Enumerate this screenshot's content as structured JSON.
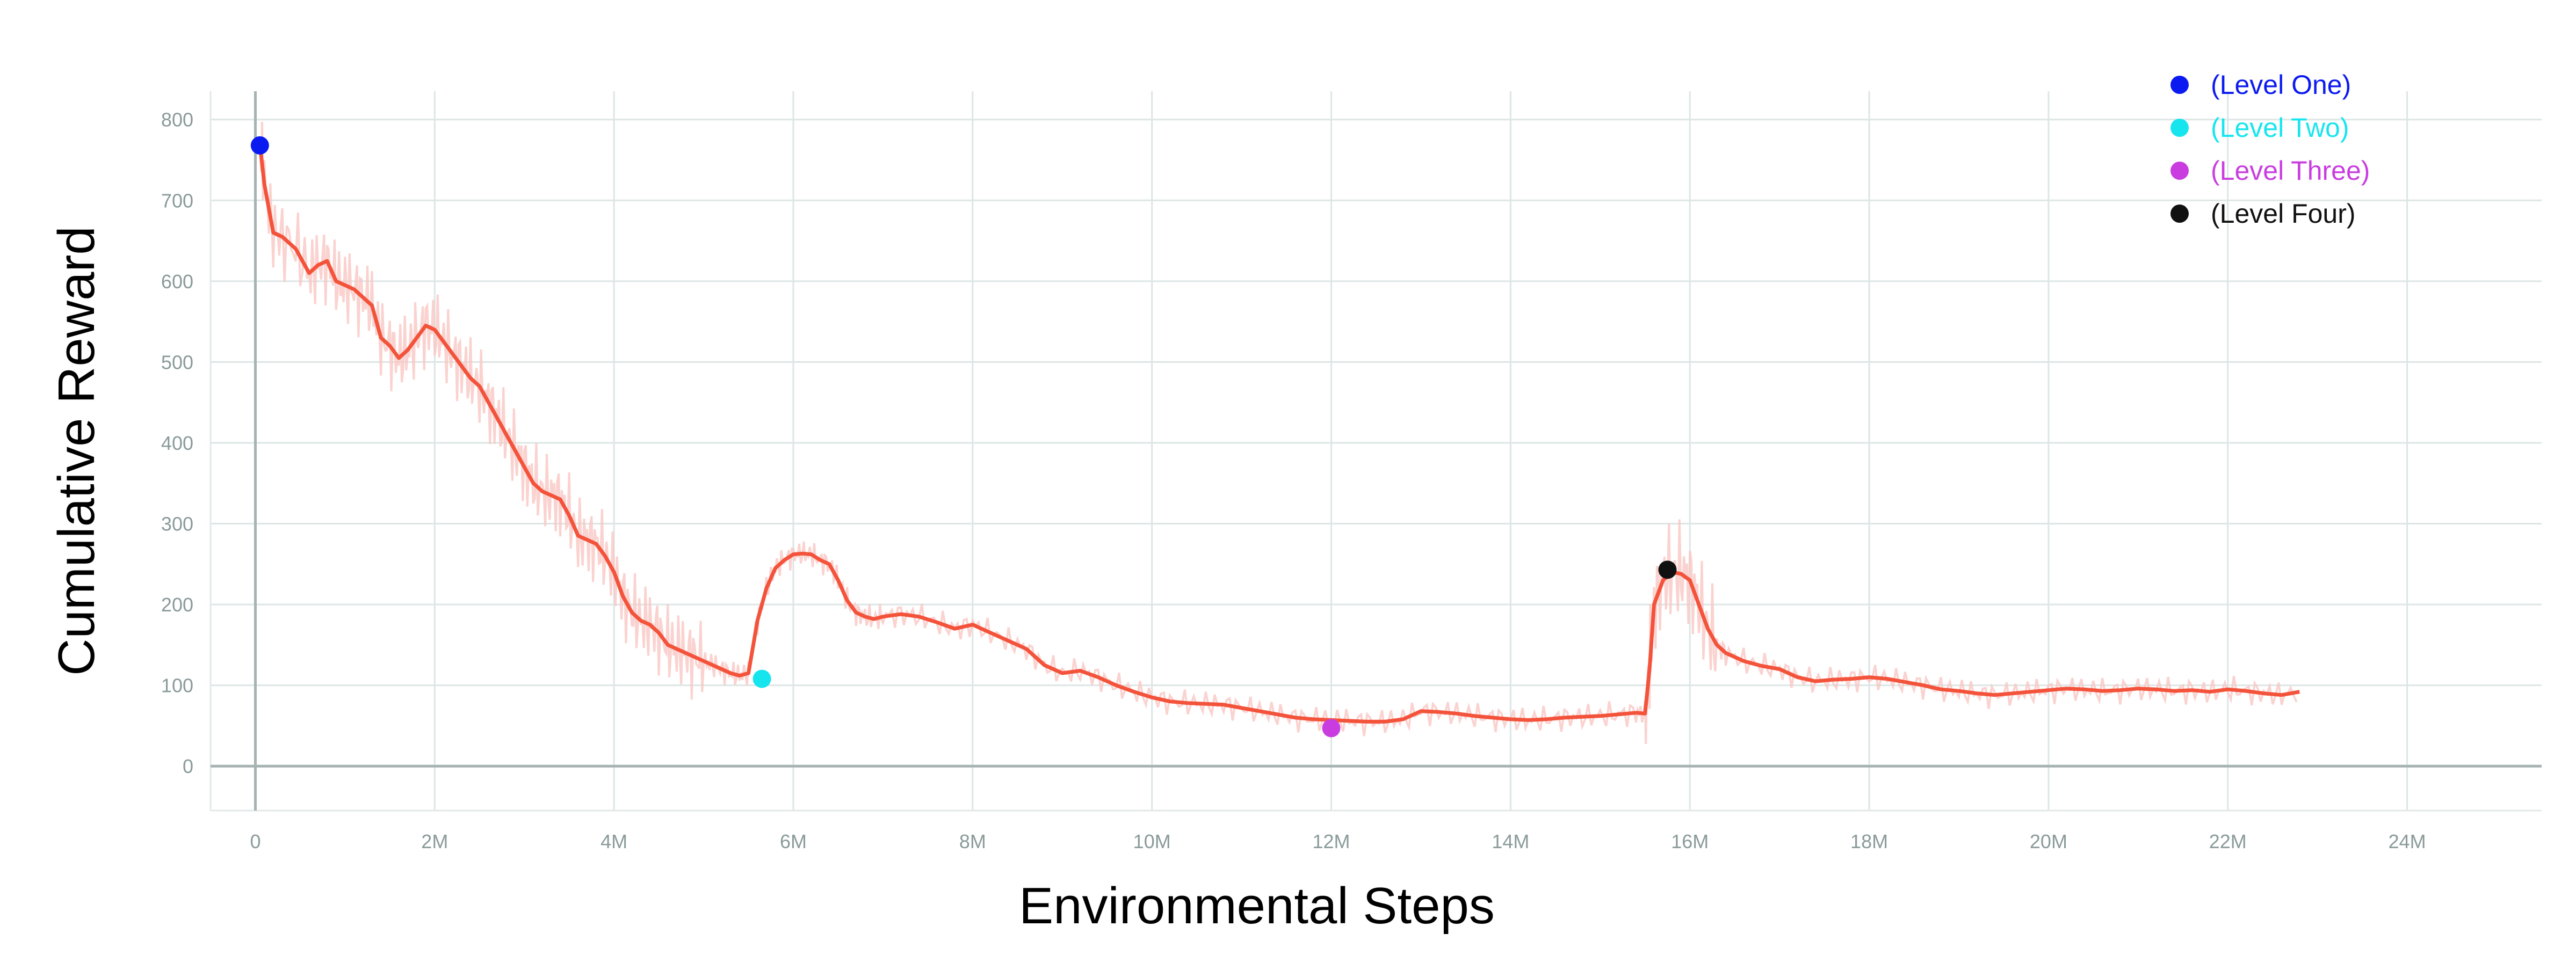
{
  "chart_data": {
    "type": "line",
    "title": "",
    "xlabel": "Environmental Steps",
    "ylabel": "Cumulative Reward",
    "xlim": [
      -0.5,
      25.5
    ],
    "ylim": [
      -55,
      835
    ],
    "grid": true,
    "legend_position": "top-right",
    "x_ticks": [
      0,
      2,
      4,
      6,
      8,
      10,
      12,
      14,
      16,
      18,
      20,
      22,
      24
    ],
    "x_tick_labels": [
      "0",
      "2M",
      "4M",
      "6M",
      "8M",
      "10M",
      "12M",
      "14M",
      "16M",
      "18M",
      "20M",
      "22M",
      "24M"
    ],
    "y_ticks": [
      0,
      100,
      200,
      300,
      400,
      500,
      600,
      700,
      800
    ],
    "y_tick_labels": [
      "0",
      "100",
      "200",
      "300",
      "400",
      "500",
      "600",
      "700",
      "800"
    ],
    "x_unit": "M",
    "series": [
      {
        "color": "#f4533b",
        "raw_color": "#f9c7c3",
        "x": [
          0.05,
          0.1,
          0.2,
          0.3,
          0.45,
          0.6,
          0.7,
          0.8,
          0.9,
          1.0,
          1.1,
          1.2,
          1.3,
          1.4,
          1.5,
          1.6,
          1.7,
          1.8,
          1.9,
          2.0,
          2.1,
          2.2,
          2.3,
          2.4,
          2.5,
          2.6,
          2.7,
          2.8,
          2.9,
          3.0,
          3.1,
          3.2,
          3.3,
          3.4,
          3.5,
          3.6,
          3.7,
          3.8,
          3.9,
          4.0,
          4.1,
          4.2,
          4.3,
          4.4,
          4.5,
          4.6,
          4.7,
          4.8,
          4.9,
          5.0,
          5.1,
          5.2,
          5.3,
          5.4,
          5.5,
          5.6,
          5.7,
          5.8,
          5.9,
          6.0,
          6.1,
          6.2,
          6.3,
          6.4,
          6.5,
          6.6,
          6.7,
          6.8,
          6.9,
          7.0,
          7.2,
          7.4,
          7.6,
          7.8,
          8.0,
          8.2,
          8.4,
          8.6,
          8.8,
          9.0,
          9.2,
          9.4,
          9.6,
          9.8,
          10.0,
          10.2,
          10.4,
          10.6,
          10.8,
          11.0,
          11.2,
          11.4,
          11.6,
          11.8,
          12.0,
          12.2,
          12.4,
          12.6,
          12.8,
          13.0,
          13.2,
          13.4,
          13.6,
          13.8,
          14.0,
          14.2,
          14.4,
          14.6,
          14.8,
          15.0,
          15.2,
          15.4,
          15.5,
          15.55,
          15.6,
          15.7,
          15.8,
          15.9,
          16.0,
          16.1,
          16.2,
          16.3,
          16.4,
          16.6,
          16.8,
          17.0,
          17.2,
          17.4,
          17.6,
          17.8,
          18.0,
          18.2,
          18.4,
          18.6,
          18.8,
          19.0,
          19.2,
          19.4,
          19.6,
          19.8,
          20.0,
          20.2,
          20.4,
          20.6,
          20.8,
          21.0,
          21.2,
          21.4,
          21.6,
          21.8,
          22.0,
          22.2,
          22.4,
          22.6,
          22.8
        ],
        "y": [
          770,
          720,
          660,
          655,
          640,
          610,
          620,
          625,
          600,
          595,
          590,
          580,
          570,
          530,
          520,
          505,
          515,
          530,
          545,
          540,
          525,
          510,
          495,
          480,
          470,
          450,
          430,
          410,
          390,
          370,
          350,
          340,
          335,
          330,
          310,
          285,
          280,
          275,
          260,
          240,
          210,
          190,
          180,
          175,
          165,
          150,
          145,
          140,
          135,
          130,
          125,
          120,
          115,
          112,
          115,
          180,
          220,
          245,
          255,
          262,
          263,
          262,
          255,
          250,
          230,
          205,
          190,
          185,
          182,
          185,
          188,
          185,
          178,
          170,
          175,
          165,
          155,
          145,
          125,
          115,
          118,
          110,
          100,
          92,
          85,
          80,
          78,
          77,
          76,
          72,
          68,
          64,
          60,
          58,
          57,
          56,
          55,
          55,
          58,
          68,
          67,
          65,
          62,
          60,
          58,
          57,
          58,
          60,
          61,
          62,
          64,
          66,
          65,
          120,
          200,
          230,
          240,
          238,
          230,
          200,
          170,
          150,
          140,
          130,
          124,
          120,
          110,
          105,
          107,
          108,
          110,
          108,
          104,
          100,
          95,
          93,
          90,
          88,
          90,
          92,
          94,
          96,
          95,
          93,
          94,
          96,
          95,
          93,
          94,
          92,
          95,
          93,
          90,
          88,
          92
        ]
      }
    ],
    "markers": [
      {
        "name": "(Level One)",
        "x": 0.05,
        "y": 768,
        "color": "#0b1af0"
      },
      {
        "name": "(Level Two)",
        "x": 5.65,
        "y": 108,
        "color": "#17e5ee"
      },
      {
        "name": "(Level Three)",
        "x": 12.0,
        "y": 47,
        "color": "#c93de0"
      },
      {
        "name": "(Level Four)",
        "x": 15.75,
        "y": 243,
        "color": "#111111"
      }
    ]
  }
}
